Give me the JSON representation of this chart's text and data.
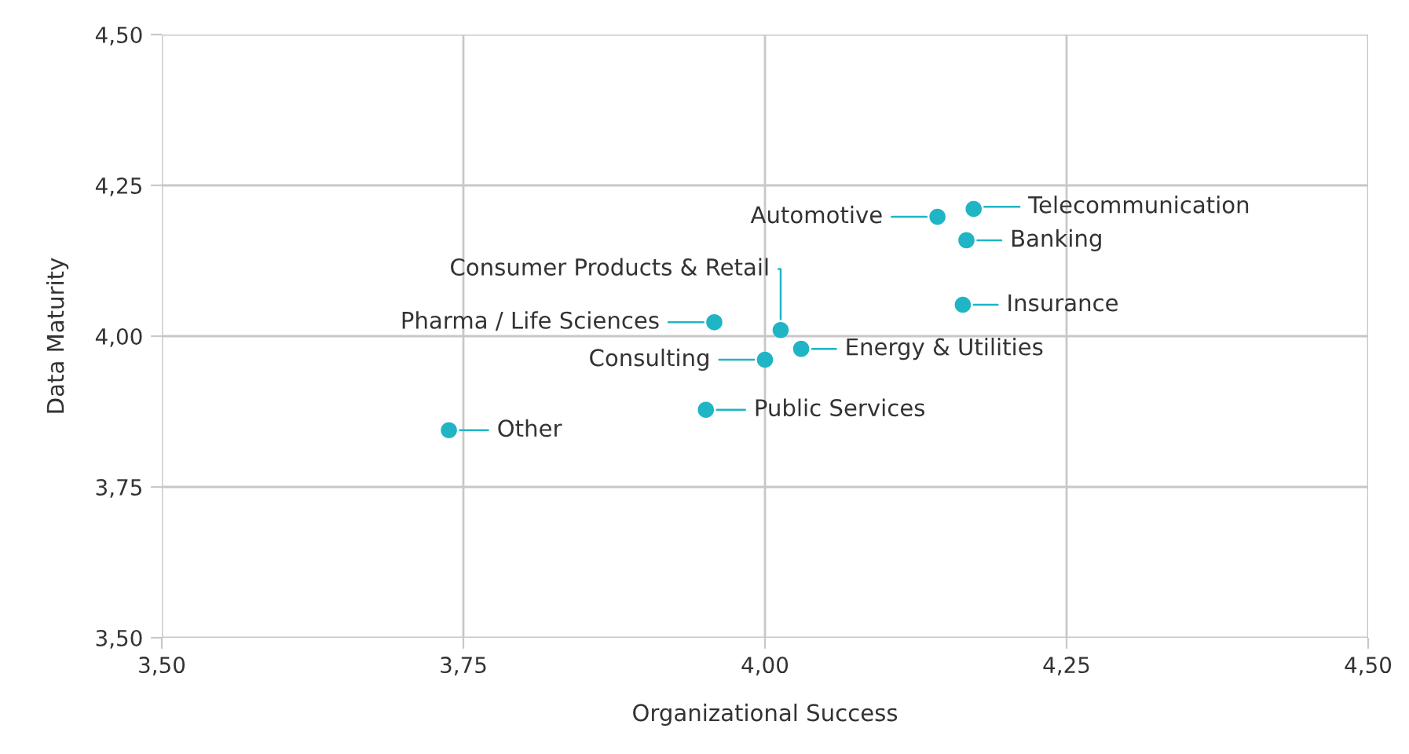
{
  "chart_data": {
    "type": "scatter",
    "xlabel": "Organizational Success",
    "ylabel": "Data Maturity",
    "x": [
      4.173,
      4.143,
      4.167,
      4.164,
      4.013,
      3.958,
      4.03,
      4.0,
      3.951,
      3.738
    ],
    "values": [
      4.211,
      4.198,
      4.159,
      4.052,
      4.01,
      4.023,
      3.979,
      3.961,
      3.878,
      3.844
    ],
    "color": "#1fb5c4",
    "marker": "circle",
    "annotations": [
      {
        "text": "Telecommunication",
        "x": 4.173,
        "y": 4.211
      },
      {
        "text": "Automotive",
        "x": 4.143,
        "y": 4.198
      },
      {
        "text": "Banking",
        "x": 4.167,
        "y": 4.159
      },
      {
        "text": "Insurance",
        "x": 4.164,
        "y": 4.052
      },
      {
        "text": "Consumer Products & Retail",
        "x": 4.013,
        "y": 4.01
      },
      {
        "text": "Pharma / Life Sciences",
        "x": 3.958,
        "y": 4.023
      },
      {
        "text": "Energy & Utilities",
        "x": 4.03,
        "y": 3.979
      },
      {
        "text": "Consulting",
        "x": 4.0,
        "y": 3.961
      },
      {
        "text": "Public Services",
        "x": 3.951,
        "y": 3.878
      },
      {
        "text": "Other",
        "x": 3.738,
        "y": 3.844
      }
    ],
    "xlim": [
      3.5,
      4.5
    ],
    "ylim": [
      3.5,
      4.5
    ],
    "xticks": [
      {
        "value": 3.5,
        "label": "3,50"
      },
      {
        "value": 3.75,
        "label": "3,75"
      },
      {
        "value": 4.0,
        "label": "4,00"
      },
      {
        "value": 4.25,
        "label": "4,25"
      },
      {
        "value": 4.5,
        "label": "4,50"
      }
    ],
    "yticks": [
      {
        "value": 3.5,
        "label": "3,50"
      },
      {
        "value": 3.75,
        "label": "3,75"
      },
      {
        "value": 4.0,
        "label": "4,00"
      },
      {
        "value": 4.25,
        "label": "4,25"
      },
      {
        "value": 4.5,
        "label": "4,50"
      }
    ],
    "grid": true
  }
}
